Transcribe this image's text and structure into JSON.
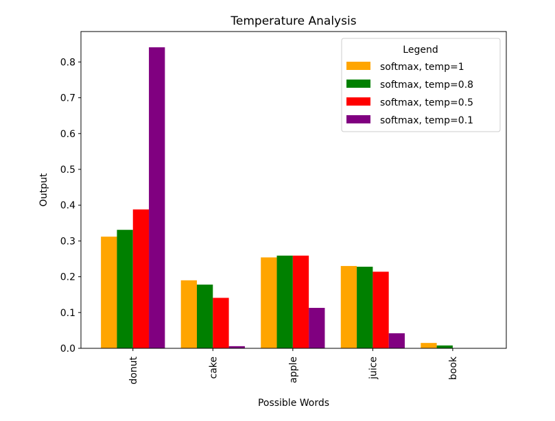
{
  "chart_data": {
    "type": "bar",
    "title": "Temperature Analysis",
    "xlabel": "Possible Words",
    "ylabel": "Output",
    "categories": [
      "donut",
      "cake",
      "apple",
      "juice",
      "book"
    ],
    "ylim": [
      0,
      0.885
    ],
    "yticks": [
      "0.0",
      "0.1",
      "0.2",
      "0.3",
      "0.4",
      "0.5",
      "0.6",
      "0.7",
      "0.8"
    ],
    "grid": false,
    "legend": {
      "title": "Legend",
      "position": "top-right"
    },
    "series": [
      {
        "name": "softmax, temp=1",
        "color": "#ffa500",
        "values": [
          0.312,
          0.19,
          0.254,
          0.23,
          0.015
        ]
      },
      {
        "name": "softmax, temp=0.8",
        "color": "#008000",
        "values": [
          0.331,
          0.178,
          0.259,
          0.228,
          0.008
        ]
      },
      {
        "name": "softmax, temp=0.5",
        "color": "#ff0000",
        "values": [
          0.388,
          0.141,
          0.259,
          0.214,
          0.0005
        ]
      },
      {
        "name": "softmax, temp=0.1",
        "color": "#800080",
        "values": [
          0.841,
          0.006,
          0.113,
          0.042,
          0.0001
        ]
      }
    ]
  }
}
